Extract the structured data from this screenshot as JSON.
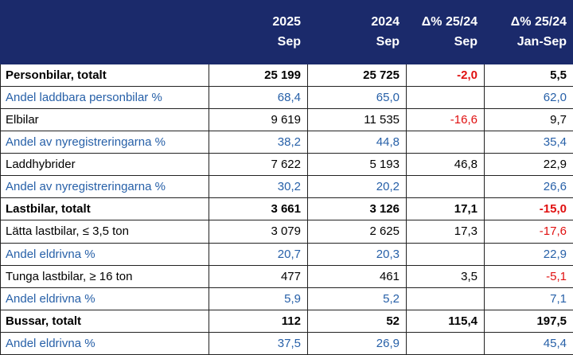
{
  "table": {
    "columns": [
      {
        "top": "2025",
        "bottom": "Sep"
      },
      {
        "top": "2024",
        "bottom": "Sep"
      },
      {
        "top": "Δ% 25/24",
        "bottom": "Sep"
      },
      {
        "top": "Δ% 25/24",
        "bottom": "Jan-Sep"
      }
    ],
    "rows": [
      {
        "style": "total",
        "label": "Personbilar, totalt",
        "cells": [
          "25 199",
          "25 725",
          "-2,0",
          "5,5"
        ]
      },
      {
        "style": "share",
        "label": "Andel laddbara personbilar %",
        "cells": [
          "68,4",
          "65,0",
          null,
          "62,0"
        ]
      },
      {
        "style": "plain",
        "label": "Elbilar",
        "cells": [
          "9 619",
          "11 535",
          "-16,6",
          "9,7"
        ]
      },
      {
        "style": "share",
        "label": "Andel av nyregistreringarna %",
        "cells": [
          "38,2",
          "44,8",
          null,
          "35,4"
        ]
      },
      {
        "style": "plain",
        "label": "Laddhybrider",
        "cells": [
          "7 622",
          "5 193",
          "46,8",
          "22,9"
        ]
      },
      {
        "style": "share",
        "label": "Andel av nyregistreringarna %",
        "cells": [
          "30,2",
          "20,2",
          null,
          "26,6"
        ]
      },
      {
        "style": "total",
        "label": "Lastbilar, totalt",
        "cells": [
          "3 661",
          "3 126",
          "17,1",
          "-15,0"
        ]
      },
      {
        "style": "plain",
        "label": "Lätta lastbilar, ≤ 3,5 ton",
        "cells": [
          "3 079",
          "2 625",
          "17,3",
          "-17,6"
        ]
      },
      {
        "style": "share",
        "label": "Andel eldrivna %",
        "cells": [
          "20,7",
          "20,3",
          null,
          "22,9"
        ]
      },
      {
        "style": "plain",
        "label": "Tunga lastbilar, ≥ 16 ton",
        "cells": [
          "477",
          "461",
          "3,5",
          "-5,1"
        ]
      },
      {
        "style": "share",
        "label": "Andel eldrivna %",
        "cells": [
          "5,9",
          "5,2",
          null,
          "7,1"
        ]
      },
      {
        "style": "total",
        "label": "Bussar, totalt",
        "cells": [
          "112",
          "52",
          "115,4",
          "197,5"
        ]
      },
      {
        "style": "share",
        "label": "Andel eldrivna %",
        "cells": [
          "37,5",
          "26,9",
          null,
          "45,4"
        ]
      }
    ]
  }
}
